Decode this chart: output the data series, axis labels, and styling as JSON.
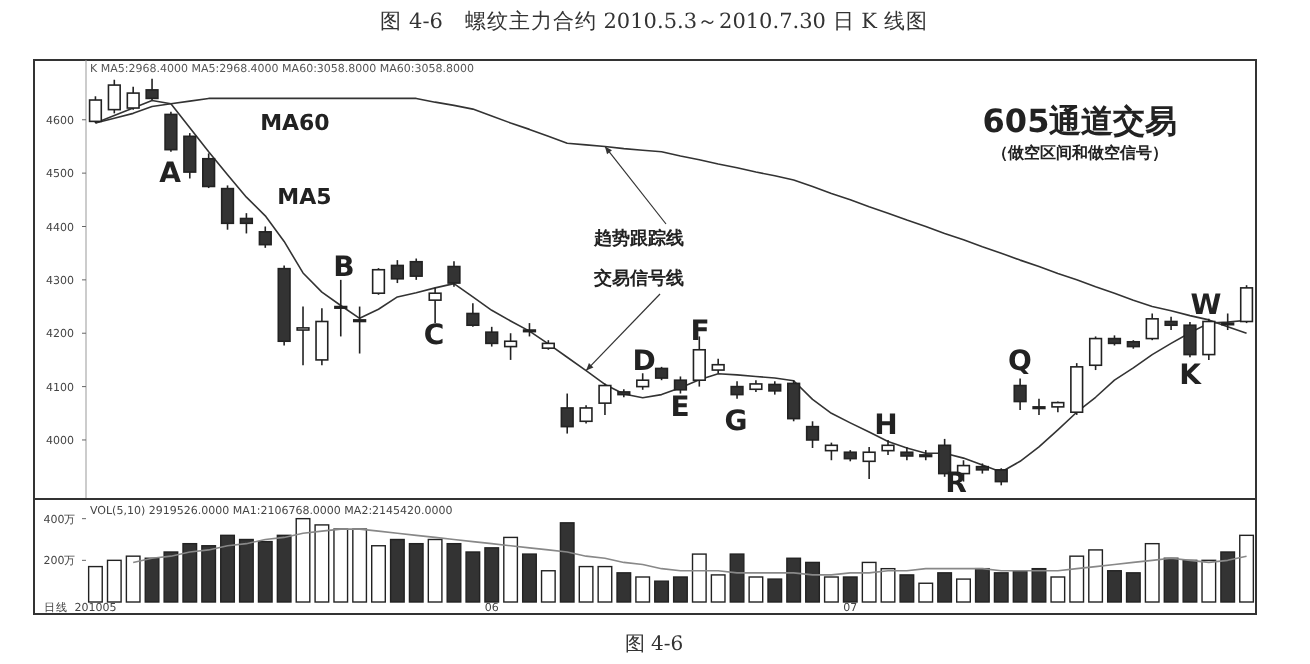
{
  "chart_data": [
    {
      "type": "candlestick",
      "title": "图 4-6　螺纹主力合约 2010.5.3～2010.7.30 日 K 线图",
      "colors": [
        "#ffffff",
        "#ffffff",
        "#ffffff",
        "#333333",
        "#333333",
        "#333333",
        "#333333",
        "#333333",
        "#333333",
        "#333333",
        "#333333",
        "#ffffff",
        "#ffffff",
        "#333333",
        "#333333",
        "#ffffff",
        "#333333",
        "#333333",
        "#ffffff",
        "#333333",
        "#333333",
        "#333333",
        "#ffffff",
        "#333333",
        "#ffffff",
        "#333333",
        "#ffffff",
        "#ffffff",
        "#333333",
        "#ffffff",
        "#333333",
        "#333333",
        "#ffffff",
        "#ffffff",
        "#333333",
        "#ffffff",
        "#333333",
        "#333333",
        "#333333",
        "#ffffff",
        "#333333",
        "#ffffff",
        "#ffffff",
        "#333333",
        "#333333",
        "#333333",
        "#ffffff",
        "#333333",
        "#333333",
        "#333333",
        "#333333",
        "#ffffff",
        "#ffffff",
        "#ffffff",
        "#333333",
        "#333333",
        "#ffffff",
        "#333333",
        "#333333",
        "#ffffff",
        "#333333",
        "#ffffff"
      ],
      "categories": [
        null,
        null,
        null,
        null,
        null,
        null,
        null,
        null,
        null,
        null,
        null,
        null,
        null,
        null,
        null,
        null,
        null,
        null,
        null,
        null,
        null,
        null,
        null,
        null,
        null,
        null,
        null,
        null,
        null,
        null,
        null,
        null,
        null,
        null,
        null,
        null,
        null,
        null,
        null,
        null,
        null,
        null,
        null,
        null,
        null,
        null,
        null,
        null,
        null,
        null,
        null,
        null,
        null,
        null,
        null,
        null,
        null,
        null,
        null,
        null,
        null,
        null
      ],
      "ohlc": [
        [
          4597,
          4644,
          4594,
          4637
        ],
        [
          4619,
          4675,
          4612,
          4665
        ],
        [
          4622,
          4662,
          4619,
          4650
        ],
        [
          4656,
          4677,
          4637,
          4640
        ],
        [
          4610,
          4615,
          4540,
          4544
        ],
        [
          4569,
          4575,
          4490,
          4502
        ],
        [
          4527,
          4537,
          4472,
          4475
        ],
        [
          4471,
          4477,
          4394,
          4406
        ],
        [
          4415,
          4425,
          4387,
          4406
        ],
        [
          4390,
          4400,
          4360,
          4366
        ],
        [
          4321,
          4327,
          4177,
          4185
        ],
        [
          4206,
          4250,
          4140,
          4210
        ],
        [
          4150,
          4247,
          4140,
          4222
        ],
        [
          4250,
          4300,
          4194,
          4248
        ],
        [
          4225,
          4250,
          4162,
          4225
        ],
        [
          4275,
          4322,
          4272,
          4319
        ],
        [
          4327,
          4337,
          4294,
          4302
        ],
        [
          4334,
          4340,
          4300,
          4307
        ],
        [
          4262,
          4285,
          4219,
          4275
        ],
        [
          4325,
          4335,
          4287,
          4294
        ],
        [
          4237,
          4256,
          4212,
          4215
        ],
        [
          4202,
          4212,
          4175,
          4181
        ],
        [
          4175,
          4200,
          4150,
          4185
        ],
        [
          4206,
          4219,
          4194,
          4206
        ],
        [
          4172,
          4187,
          4169,
          4181
        ],
        [
          4060,
          4087,
          4012,
          4025
        ],
        [
          4035,
          4065,
          4031,
          4060
        ],
        [
          4069,
          4106,
          4047,
          4102
        ],
        [
          4090,
          4095,
          4080,
          4085
        ],
        [
          4100,
          4125,
          4094,
          4112
        ],
        [
          4134,
          4137,
          4112,
          4116
        ],
        [
          4112,
          4119,
          4087,
          4094
        ],
        [
          4112,
          4194,
          4100,
          4169
        ],
        [
          4131,
          4152,
          4125,
          4141
        ],
        [
          4100,
          4110,
          4077,
          4085
        ],
        [
          4095,
          4112,
          4090,
          4105
        ],
        [
          4104,
          4110,
          4085,
          4092
        ],
        [
          4106,
          4112,
          4035,
          4040
        ],
        [
          4025,
          4035,
          3985,
          4000
        ],
        [
          3980,
          3995,
          3962,
          3990
        ],
        [
          3977,
          3981,
          3960,
          3965
        ],
        [
          3960,
          3987,
          3927,
          3977
        ],
        [
          3980,
          4000,
          3972,
          3990
        ],
        [
          3977,
          3987,
          3962,
          3970
        ],
        [
          3972,
          3981,
          3962,
          3972
        ],
        [
          3990,
          4002,
          3931,
          3937
        ],
        [
          3937,
          3962,
          3922,
          3952
        ],
        [
          3950,
          3956,
          3937,
          3944
        ],
        [
          3944,
          3947,
          3915,
          3922
        ],
        [
          4102,
          4115,
          4056,
          4072
        ],
        [
          4062,
          4077,
          4047,
          4062
        ],
        [
          4062,
          4072,
          4052,
          4070
        ],
        [
          4052,
          4144,
          4047,
          4137
        ],
        [
          4140,
          4194,
          4131,
          4190
        ],
        [
          4190,
          4196,
          4177,
          4181
        ],
        [
          4184,
          4187,
          4171,
          4175
        ],
        [
          4190,
          4237,
          4187,
          4227
        ],
        [
          4222,
          4231,
          4206,
          4215
        ],
        [
          4215,
          4221,
          4155,
          4160
        ],
        [
          4160,
          4227,
          4150,
          4222
        ],
        [
          4219,
          4237,
          4206,
          4219
        ],
        [
          4222,
          4290,
          4219,
          4285
        ]
      ],
      "series": [
        {
          "name": "MA60",
          "type": "line",
          "color": "#333333",
          "values": [
            4594,
            4603,
            4612,
            4625,
            4630,
            4635,
            4640,
            4640,
            4640,
            4640,
            4640,
            4640,
            4640,
            4640,
            4640,
            4640,
            4640,
            4640,
            4633,
            4627,
            4620,
            4607,
            4594,
            4582,
            4569,
            4556,
            4553,
            4550,
            4546,
            4543,
            4540,
            4532,
            4525,
            4517,
            4510,
            4502,
            4495,
            4487,
            4475,
            4462,
            4450,
            4437,
            4425,
            4412,
            4400,
            4387,
            4375,
            4362,
            4350,
            4337,
            4325,
            4312,
            4300,
            4287,
            4275,
            4262,
            4250,
            4242,
            4233,
            4225,
            4212,
            4200
          ]
        },
        {
          "name": "MA5",
          "type": "line",
          "color": "#333333",
          "values": [
            4594,
            4608,
            4622,
            4636,
            4630,
            4585,
            4540,
            4497,
            4455,
            4420,
            4372,
            4313,
            4277,
            4252,
            4228,
            4245,
            4268,
            4276,
            4285,
            4293,
            4268,
            4243,
            4223,
            4204,
            4180,
            4155,
            4130,
            4104,
            4086,
            4079,
            4085,
            4098,
            4113,
            4124,
            4122,
            4119,
            4116,
            4111,
            4076,
            4050,
            4032,
            4015,
            3997,
            3985,
            3975,
            3975,
            3966,
            3953,
            3940,
            3960,
            3987,
            4019,
            4052,
            4080,
            4112,
            4135,
            4160,
            4181,
            4201,
            4219,
            4221,
            4224
          ]
        }
      ],
      "ylim": [
        3895,
        4712
      ],
      "yticks": [
        4000,
        4100,
        4200,
        4300,
        4400,
        4500,
        4600
      ],
      "tick_labels": "y",
      "grid": false,
      "annotations": [
        "K  MA5:2968.4000  MA5:2968.4000  MA60:3058.8000  MA60:3058.8000",
        "605通道交易",
        "（做空区间和做空信号）",
        "趋势跟踪线",
        "交易信号线",
        "A",
        "B",
        "C",
        "D",
        "E",
        "F",
        "G",
        "H",
        "R",
        "Q",
        "K",
        "W"
      ]
    },
    {
      "type": "bar",
      "categories": [
        "201005",
        null,
        null,
        null,
        null,
        null,
        null,
        null,
        null,
        null,
        null,
        null,
        null,
        null,
        null,
        null,
        null,
        null,
        null,
        null,
        null,
        "06",
        null,
        null,
        null,
        null,
        null,
        null,
        null,
        null,
        null,
        null,
        null,
        null,
        null,
        null,
        null,
        null,
        null,
        null,
        "07",
        null,
        null,
        null,
        null,
        null,
        null,
        null,
        null,
        null,
        null,
        null,
        null,
        null,
        null,
        null,
        null,
        null,
        null,
        null,
        null,
        null
      ],
      "series": [
        {
          "type": "bar",
          "values": [
            170,
            200,
            220,
            210,
            240,
            280,
            270,
            320,
            300,
            290,
            320,
            400,
            370,
            350,
            350,
            270,
            300,
            280,
            300,
            280,
            240,
            260,
            310,
            230,
            150,
            380,
            170,
            170,
            140,
            120,
            100,
            120,
            230,
            130,
            230,
            120,
            110,
            210,
            190,
            120,
            120,
            190,
            160,
            130,
            90,
            140,
            110,
            160,
            140,
            150,
            160,
            120,
            220,
            250,
            150,
            140,
            280,
            210,
            200,
            200,
            240,
            320
          ],
          "colors": [
            "#ffffff",
            "#ffffff",
            "#ffffff",
            "#333333",
            "#333333",
            "#333333",
            "#333333",
            "#333333",
            "#333333",
            "#333333",
            "#333333",
            "#ffffff",
            "#ffffff",
            "#ffffff",
            "#ffffff",
            "#ffffff",
            "#333333",
            "#333333",
            "#ffffff",
            "#333333",
            "#333333",
            "#333333",
            "#ffffff",
            "#333333",
            "#ffffff",
            "#333333",
            "#ffffff",
            "#ffffff",
            "#333333",
            "#ffffff",
            "#333333",
            "#333333",
            "#ffffff",
            "#ffffff",
            "#333333",
            "#ffffff",
            "#333333",
            "#333333",
            "#333333",
            "#ffffff",
            "#333333",
            "#ffffff",
            "#ffffff",
            "#333333",
            "#ffffff",
            "#333333",
            "#ffffff",
            "#333333",
            "#333333",
            "#333333",
            "#333333",
            "#ffffff",
            "#ffffff",
            "#ffffff",
            "#333333",
            "#333333",
            "#ffffff",
            "#333333",
            "#333333",
            "#ffffff",
            "#333333",
            "#ffffff"
          ]
        },
        {
          "type": "line",
          "color": "#888888",
          "values": [
            null,
            null,
            190,
            210,
            220,
            240,
            250,
            270,
            280,
            300,
            310,
            330,
            340,
            350,
            350,
            340,
            330,
            320,
            310,
            300,
            290,
            280,
            270,
            260,
            250,
            240,
            220,
            210,
            190,
            180,
            160,
            150,
            150,
            150,
            140,
            140,
            140,
            140,
            130,
            130,
            140,
            140,
            150,
            150,
            160,
            160,
            160,
            160,
            150,
            150,
            150,
            150,
            160,
            170,
            180,
            190,
            200,
            210,
            200,
            190,
            200,
            220
          ]
        }
      ],
      "ylim": [
        0,
        480
      ],
      "yticks": [
        {
          "value": 200,
          "label": "200万"
        },
        {
          "value": 400,
          "label": "400万"
        }
      ],
      "grid": false,
      "annotations": [
        "VOL(5,10) 2919526.0000 MA1:2106768.0000 MA2:2145420.0000",
        "日线",
        "图 4-6"
      ]
    }
  ]
}
